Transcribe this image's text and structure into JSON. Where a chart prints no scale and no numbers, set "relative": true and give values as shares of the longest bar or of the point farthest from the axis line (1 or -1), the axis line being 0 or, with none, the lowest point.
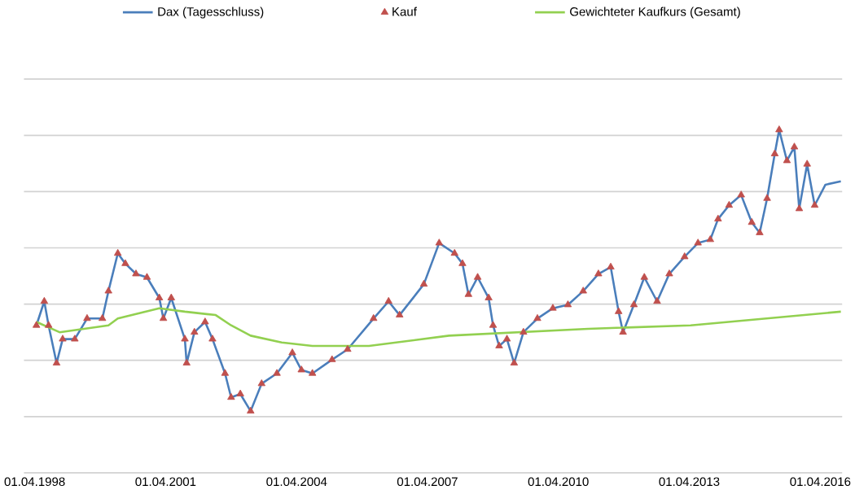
{
  "chart_data": {
    "type": "line",
    "relative": true,
    "grid": "y",
    "legend": "top",
    "xlim": [
      "1998-01-01",
      "2016-10-01"
    ],
    "xticks": [
      {
        "value": "1998-04-01",
        "label": "01.04.1998"
      },
      {
        "value": "2001-04-01",
        "label": "01.04.2001"
      },
      {
        "value": "2004-04-01",
        "label": "01.04.2004"
      },
      {
        "value": "2007-04-01",
        "label": "01.04.2007"
      },
      {
        "value": "2010-04-01",
        "label": "01.04.2010"
      },
      {
        "value": "2013-04-01",
        "label": "01.04.2013"
      },
      {
        "value": "2016-04-01",
        "label": "01.04.2016"
      }
    ],
    "series": [
      {
        "name": "Dax (Tagesschluss)",
        "type": "line",
        "color": "#4a7ebb",
        "x": [
          "1998-04-15",
          "1998-06-20",
          "1998-07-26",
          "1998-10-01",
          "1998-11-21",
          "1999-03-02",
          "1999-06-13",
          "1999-10-19",
          "1999-12-09",
          "2000-02-25",
          "2000-04-28",
          "2000-07-26",
          "2000-10-26",
          "2001-02-07",
          "2001-03-13",
          "2001-05-18",
          "2001-09-09",
          "2001-09-24",
          "2001-11-28",
          "2002-02-25",
          "2002-04-28",
          "2002-08-11",
          "2002-10-01",
          "2002-12-17",
          "2003-03-13",
          "2003-06-13",
          "2003-10-19",
          "2004-02-25",
          "2004-05-11",
          "2004-08-11",
          "2005-01-23",
          "2005-06-02",
          "2006-01-05",
          "2006-05-11",
          "2006-08-11",
          "2007-03-02",
          "2007-07-08",
          "2007-11-14",
          "2008-01-19",
          "2008-03-09",
          "2008-05-25",
          "2008-08-25",
          "2008-10-01",
          "2008-11-21",
          "2009-01-26",
          "2009-03-27",
          "2009-06-13",
          "2009-10-08",
          "2010-02-14",
          "2010-06-20",
          "2010-10-26",
          "2011-03-02",
          "2011-06-13",
          "2011-08-18",
          "2011-09-24",
          "2011-12-24",
          "2012-03-20",
          "2012-07-05",
          "2012-10-15",
          "2013-02-21",
          "2013-06-13",
          "2013-09-24",
          "2013-11-28",
          "2014-02-28",
          "2014-06-09",
          "2014-09-06",
          "2014-11-11",
          "2015-01-12",
          "2015-03-17",
          "2015-04-23",
          "2015-06-27",
          "2015-08-28",
          "2015-10-08",
          "2015-12-13",
          "2016-02-14",
          "2016-05-14",
          "2016-09-20"
        ],
        "values": [
          0.43,
          0.5,
          0.43,
          0.32,
          0.39,
          0.39,
          0.45,
          0.45,
          0.53,
          0.64,
          0.61,
          0.58,
          0.57,
          0.51,
          0.45,
          0.51,
          0.39,
          0.32,
          0.41,
          0.44,
          0.39,
          0.29,
          0.22,
          0.23,
          0.18,
          0.26,
          0.29,
          0.35,
          0.3,
          0.29,
          0.33,
          0.36,
          0.45,
          0.5,
          0.46,
          0.55,
          0.67,
          0.64,
          0.61,
          0.52,
          0.57,
          0.51,
          0.43,
          0.37,
          0.39,
          0.32,
          0.41,
          0.45,
          0.48,
          0.49,
          0.53,
          0.58,
          0.6,
          0.47,
          0.41,
          0.49,
          0.57,
          0.5,
          0.58,
          0.63,
          0.67,
          0.68,
          0.74,
          0.78,
          0.81,
          0.73,
          0.7,
          0.8,
          0.93,
          1,
          0.91,
          0.95,
          0.77,
          0.9,
          0.78,
          0.84,
          0.85
        ]
      },
      {
        "name": "Kauf",
        "type": "scatter",
        "marker": "triangle",
        "color": "#c0504d",
        "x": [
          "1998-04-15",
          "1998-06-20",
          "1998-07-26",
          "1998-10-01",
          "1998-11-21",
          "1999-03-02",
          "1999-06-13",
          "1999-10-19",
          "1999-12-09",
          "2000-02-25",
          "2000-04-28",
          "2000-07-26",
          "2000-10-26",
          "2001-02-07",
          "2001-03-13",
          "2001-05-18",
          "2001-09-09",
          "2001-09-24",
          "2001-11-28",
          "2002-02-25",
          "2002-04-28",
          "2002-08-11",
          "2002-10-01",
          "2002-12-17",
          "2003-03-13",
          "2003-06-13",
          "2003-10-19",
          "2004-02-25",
          "2004-05-11",
          "2004-08-11",
          "2005-01-23",
          "2005-06-02",
          "2006-01-05",
          "2006-05-11",
          "2006-08-11",
          "2007-03-02",
          "2007-07-08",
          "2007-11-14",
          "2008-01-19",
          "2008-03-09",
          "2008-05-25",
          "2008-08-25",
          "2008-10-01",
          "2008-11-21",
          "2009-01-26",
          "2009-03-27",
          "2009-06-13",
          "2009-10-08",
          "2010-02-14",
          "2010-06-20",
          "2010-10-26",
          "2011-03-02",
          "2011-06-13",
          "2011-08-18",
          "2011-09-24",
          "2011-12-24",
          "2012-03-20",
          "2012-07-05",
          "2012-10-15",
          "2013-02-21",
          "2013-06-13",
          "2013-09-24",
          "2013-11-28",
          "2014-02-28",
          "2014-06-09",
          "2014-09-06",
          "2014-11-11",
          "2015-01-12",
          "2015-03-17",
          "2015-04-23",
          "2015-06-27",
          "2015-08-28",
          "2015-10-08",
          "2015-12-13",
          "2016-02-14"
        ],
        "values": [
          0.43,
          0.5,
          0.43,
          0.32,
          0.39,
          0.39,
          0.45,
          0.45,
          0.53,
          0.64,
          0.61,
          0.58,
          0.57,
          0.51,
          0.45,
          0.51,
          0.39,
          0.32,
          0.41,
          0.44,
          0.39,
          0.29,
          0.22,
          0.23,
          0.18,
          0.26,
          0.29,
          0.35,
          0.3,
          0.29,
          0.33,
          0.36,
          0.45,
          0.5,
          0.46,
          0.55,
          0.67,
          0.64,
          0.61,
          0.52,
          0.57,
          0.51,
          0.43,
          0.37,
          0.39,
          0.32,
          0.41,
          0.45,
          0.48,
          0.49,
          0.53,
          0.58,
          0.6,
          0.47,
          0.41,
          0.49,
          0.57,
          0.5,
          0.58,
          0.63,
          0.67,
          0.68,
          0.74,
          0.78,
          0.81,
          0.73,
          0.7,
          0.8,
          0.93,
          1,
          0.91,
          0.95,
          0.77,
          0.9,
          0.78
        ]
      },
      {
        "name": "Gewichteter Kaufkurs (Gesamt)",
        "type": "line",
        "color": "#92d050",
        "x": [
          "1998-04-15",
          "1998-10-26",
          "1999-12-09",
          "2000-02-25",
          "2001-02-07",
          "2001-09-09",
          "2002-05-25",
          "2002-10-01",
          "2003-03-13",
          "2003-11-28",
          "2004-08-11",
          "2005-11-28",
          "2007-09-28",
          "2010-12-06",
          "2013-04-12",
          "2016-09-20"
        ],
        "values": [
          0.44,
          0.41,
          0.43,
          0.45,
          0.48,
          0.47,
          0.46,
          0.43,
          0.4,
          0.38,
          0.37,
          0.37,
          0.4,
          0.42,
          0.43,
          0.47
        ]
      }
    ]
  }
}
